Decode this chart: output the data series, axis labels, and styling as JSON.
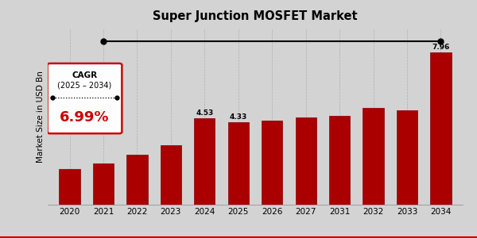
{
  "title": "Super Junction MOSFET Market",
  "ylabel": "Market Size in USD Bn",
  "categories": [
    "2020",
    "2021",
    "2022",
    "2023",
    "2024",
    "2025",
    "2026",
    "2027",
    "2031",
    "2032",
    "2033",
    "2034"
  ],
  "values": [
    1.85,
    2.15,
    2.6,
    3.1,
    4.53,
    4.33,
    4.4,
    4.55,
    4.65,
    5.05,
    4.95,
    7.96
  ],
  "bar_color": "#AA0000",
  "bar_edge_color": "#880000",
  "background_color": "#D3D3D3",
  "label_values": {
    "2024": "4.53",
    "2025": "4.33",
    "2034": "7.96"
  },
  "cagr_text_line1": "CAGR",
  "cagr_text_line2": "(2025 – 2034)",
  "cagr_value": "6.99%",
  "title_fontsize": 10.5,
  "ylabel_fontsize": 7.5,
  "tick_fontsize": 7.5,
  "value_label_fontsize": 6.5
}
